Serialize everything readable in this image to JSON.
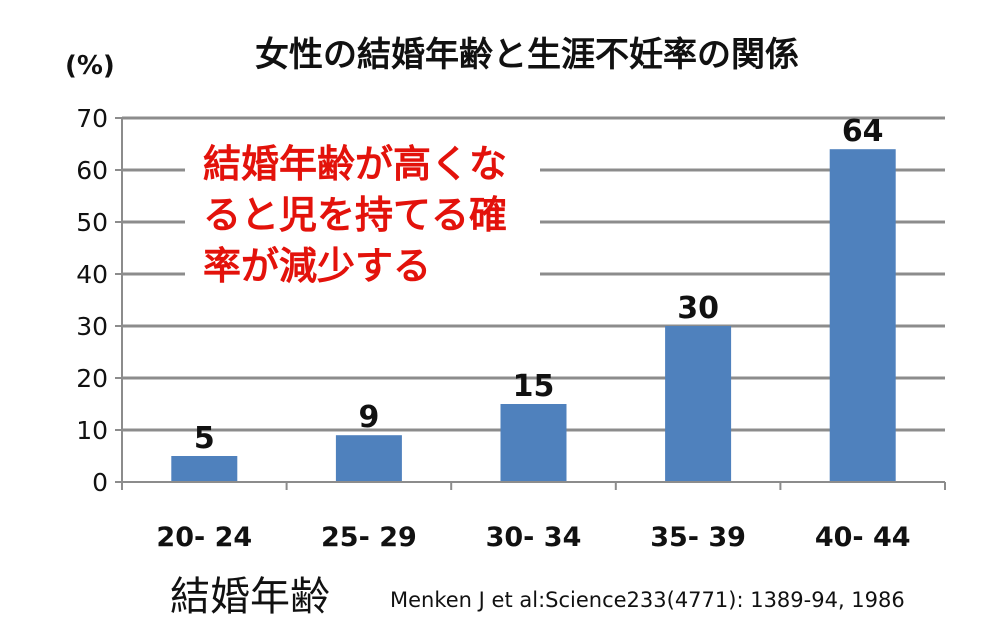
{
  "chart_data": {
    "type": "bar",
    "title": "女性の結婚年齢と生涯不妊率の関係",
    "ylabel": "(%)",
    "xlabel": "結婚年齢",
    "categories": [
      "20- 24",
      "25- 29",
      "30- 34",
      "35- 39",
      "40- 44"
    ],
    "values": [
      5,
      9,
      15,
      30,
      64
    ],
    "data_labels": [
      "5",
      "9",
      "15",
      "30",
      "64"
    ],
    "ylim": [
      0,
      70
    ],
    "yticks": [
      "0",
      "10",
      "20",
      "30",
      "40",
      "50",
      "60",
      "70"
    ],
    "grid": true,
    "bar_color": "#4f81bd",
    "annotation": [
      "結婚年齢が高くな",
      "ると児を持てる確",
      "率が減少する"
    ],
    "annotation_color": "#e3120b",
    "source": "Menken J et al:Science233(4771): 1389-94, 1986"
  }
}
